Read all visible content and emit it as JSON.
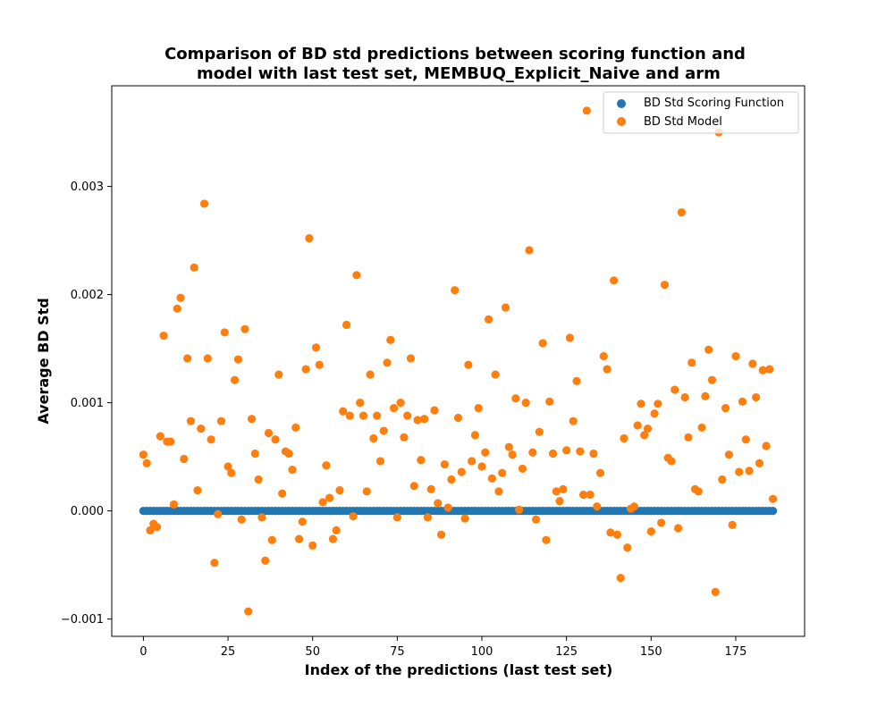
{
  "chart_data": {
    "type": "scatter",
    "title_line1": "Comparison of BD std predictions between scoring function and",
    "title_line2": "model with last test set, MEMBUQ_Explicit_Naive and arm",
    "xlabel": "Index of the predictions (last test set)",
    "ylabel": "Average BD Std",
    "xlim": [
      -9.35,
      195.35
    ],
    "ylim": [
      -0.00116,
      0.00393
    ],
    "xticks": [
      0,
      25,
      50,
      75,
      100,
      125,
      150,
      175
    ],
    "xtick_labels": [
      "0",
      "25",
      "50",
      "75",
      "100",
      "125",
      "150",
      "175"
    ],
    "yticks": [
      -0.001,
      0.0,
      0.001,
      0.002,
      0.003
    ],
    "ytick_labels": [
      "−0.001",
      "0.000",
      "0.001",
      "0.002",
      "0.003"
    ],
    "grid": false,
    "legend_position": "top-right",
    "series": [
      {
        "name": "BD Std Scoring Function",
        "color": "#1f77b4",
        "x_start": 0,
        "x_end": 186,
        "constant_value": 0.0
      },
      {
        "name": "BD Std Model",
        "color": "#ff7f0e",
        "points": [
          [
            0,
            0.00052
          ],
          [
            1,
            0.00044
          ],
          [
            2,
            -0.00018
          ],
          [
            3,
            -0.00012
          ],
          [
            4,
            -0.00015
          ],
          [
            5,
            0.00069
          ],
          [
            6,
            0.00162
          ],
          [
            7,
            0.00064
          ],
          [
            8,
            0.00064
          ],
          [
            9,
            6e-05
          ],
          [
            10,
            0.00187
          ],
          [
            11,
            0.00197
          ],
          [
            12,
            0.00048
          ],
          [
            13,
            0.00141
          ],
          [
            14,
            0.00083
          ],
          [
            15,
            0.00225
          ],
          [
            16,
            0.00019
          ],
          [
            17,
            0.00076
          ],
          [
            18,
            0.00284
          ],
          [
            19,
            0.00141
          ],
          [
            20,
            0.00066
          ],
          [
            21,
            -0.00048
          ],
          [
            22,
            -3e-05
          ],
          [
            23,
            0.00083
          ],
          [
            24,
            0.00165
          ],
          [
            25,
            0.00041
          ],
          [
            26,
            0.00035
          ],
          [
            27,
            0.00121
          ],
          [
            28,
            0.0014
          ],
          [
            29,
            -8e-05
          ],
          [
            30,
            0.00168
          ],
          [
            31,
            -0.00093
          ],
          [
            32,
            0.00085
          ],
          [
            33,
            0.00053
          ],
          [
            34,
            0.00029
          ],
          [
            35,
            -6e-05
          ],
          [
            36,
            -0.00046
          ],
          [
            37,
            0.00072
          ],
          [
            38,
            -0.00027
          ],
          [
            39,
            0.00066
          ],
          [
            40,
            0.00126
          ],
          [
            41,
            0.00016
          ],
          [
            42,
            0.00055
          ],
          [
            43,
            0.00053
          ],
          [
            44,
            0.00038
          ],
          [
            45,
            0.00077
          ],
          [
            46,
            -0.00026
          ],
          [
            47,
            -0.0001
          ],
          [
            48,
            0.00131
          ],
          [
            49,
            0.00252
          ],
          [
            50,
            -0.00032
          ],
          [
            51,
            0.00151
          ],
          [
            52,
            0.00135
          ],
          [
            53,
            8e-05
          ],
          [
            54,
            0.00042
          ],
          [
            55,
            0.00012
          ],
          [
            56,
            -0.00026
          ],
          [
            57,
            -0.00018
          ],
          [
            58,
            0.00019
          ],
          [
            59,
            0.00092
          ],
          [
            60,
            0.00172
          ],
          [
            61,
            0.00088
          ],
          [
            62,
            -5e-05
          ],
          [
            63,
            0.00218
          ],
          [
            64,
            0.001
          ],
          [
            65,
            0.00088
          ],
          [
            66,
            0.00018
          ],
          [
            67,
            0.00126
          ],
          [
            68,
            0.00067
          ],
          [
            69,
            0.00088
          ],
          [
            70,
            0.00046
          ],
          [
            71,
            0.00074
          ],
          [
            72,
            0.00137
          ],
          [
            73,
            0.00158
          ],
          [
            74,
            0.00095
          ],
          [
            75,
            -6e-05
          ],
          [
            76,
            0.001
          ],
          [
            77,
            0.00068
          ],
          [
            78,
            0.00088
          ],
          [
            79,
            0.00141
          ],
          [
            80,
            0.00023
          ],
          [
            81,
            0.00084
          ],
          [
            82,
            0.00047
          ],
          [
            83,
            0.00085
          ],
          [
            84,
            -6e-05
          ],
          [
            85,
            0.0002
          ],
          [
            86,
            0.00093
          ],
          [
            87,
            7e-05
          ],
          [
            88,
            -0.00022
          ],
          [
            89,
            0.00043
          ],
          [
            90,
            3e-05
          ],
          [
            91,
            0.00029
          ],
          [
            92,
            0.00204
          ],
          [
            93,
            0.00086
          ],
          [
            94,
            0.00036
          ],
          [
            95,
            -7e-05
          ],
          [
            96,
            0.00135
          ],
          [
            97,
            0.00046
          ],
          [
            98,
            0.0007
          ],
          [
            99,
            0.00095
          ],
          [
            100,
            0.00041
          ],
          [
            101,
            0.00054
          ],
          [
            102,
            0.00177
          ],
          [
            103,
            0.0003
          ],
          [
            104,
            0.00126
          ],
          [
            105,
            0.00018
          ],
          [
            106,
            0.00035
          ],
          [
            107,
            0.00188
          ],
          [
            108,
            0.00059
          ],
          [
            109,
            0.00052
          ],
          [
            110,
            0.00104
          ],
          [
            111,
            1e-05
          ],
          [
            112,
            0.00039
          ],
          [
            113,
            0.001
          ],
          [
            114,
            0.00241
          ],
          [
            115,
            0.00054
          ],
          [
            116,
            -8e-05
          ],
          [
            117,
            0.00073
          ],
          [
            118,
            0.00155
          ],
          [
            119,
            -0.00027
          ],
          [
            120,
            0.00101
          ],
          [
            121,
            0.00053
          ],
          [
            122,
            0.00018
          ],
          [
            123,
            9e-05
          ],
          [
            124,
            0.0002
          ],
          [
            125,
            0.00056
          ],
          [
            126,
            0.0016
          ],
          [
            127,
            0.00083
          ],
          [
            128,
            0.0012
          ],
          [
            129,
            0.00055
          ],
          [
            130,
            0.00015
          ],
          [
            131,
            0.0037
          ],
          [
            132,
            0.00015
          ],
          [
            133,
            0.00053
          ],
          [
            134,
            4e-05
          ],
          [
            135,
            0.00035
          ],
          [
            136,
            0.00143
          ],
          [
            137,
            0.00131
          ],
          [
            138,
            -0.0002
          ],
          [
            139,
            0.00213
          ],
          [
            140,
            -0.00022
          ],
          [
            141,
            -0.00062
          ],
          [
            142,
            0.00067
          ],
          [
            143,
            -0.00034
          ],
          [
            144,
            2e-05
          ],
          [
            145,
            4e-05
          ],
          [
            146,
            0.00079
          ],
          [
            147,
            0.00099
          ],
          [
            148,
            0.0007
          ],
          [
            149,
            0.00076
          ],
          [
            150,
            -0.00019
          ],
          [
            151,
            0.0009
          ],
          [
            152,
            0.00099
          ],
          [
            153,
            -0.00011
          ],
          [
            154,
            0.00209
          ],
          [
            155,
            0.00049
          ],
          [
            156,
            0.00046
          ],
          [
            157,
            0.00112
          ],
          [
            158,
            -0.00016
          ],
          [
            159,
            0.00276
          ],
          [
            160,
            0.00105
          ],
          [
            161,
            0.00068
          ],
          [
            162,
            0.00137
          ],
          [
            163,
            0.0002
          ],
          [
            164,
            0.00018
          ],
          [
            165,
            0.00077
          ],
          [
            166,
            0.00106
          ],
          [
            167,
            0.00149
          ],
          [
            168,
            0.00121
          ],
          [
            169,
            -0.00075
          ],
          [
            170,
            0.0035
          ],
          [
            171,
            0.00029
          ],
          [
            172,
            0.00095
          ],
          [
            173,
            0.00052
          ],
          [
            174,
            -0.00013
          ],
          [
            175,
            0.00143
          ],
          [
            176,
            0.00036
          ],
          [
            177,
            0.00101
          ],
          [
            178,
            0.00066
          ],
          [
            179,
            0.00037
          ],
          [
            180,
            0.00136
          ],
          [
            181,
            0.00105
          ],
          [
            182,
            0.00044
          ],
          [
            183,
            0.0013
          ],
          [
            184,
            0.0006
          ],
          [
            185,
            0.00131
          ],
          [
            186,
            0.00011
          ]
        ]
      }
    ]
  }
}
